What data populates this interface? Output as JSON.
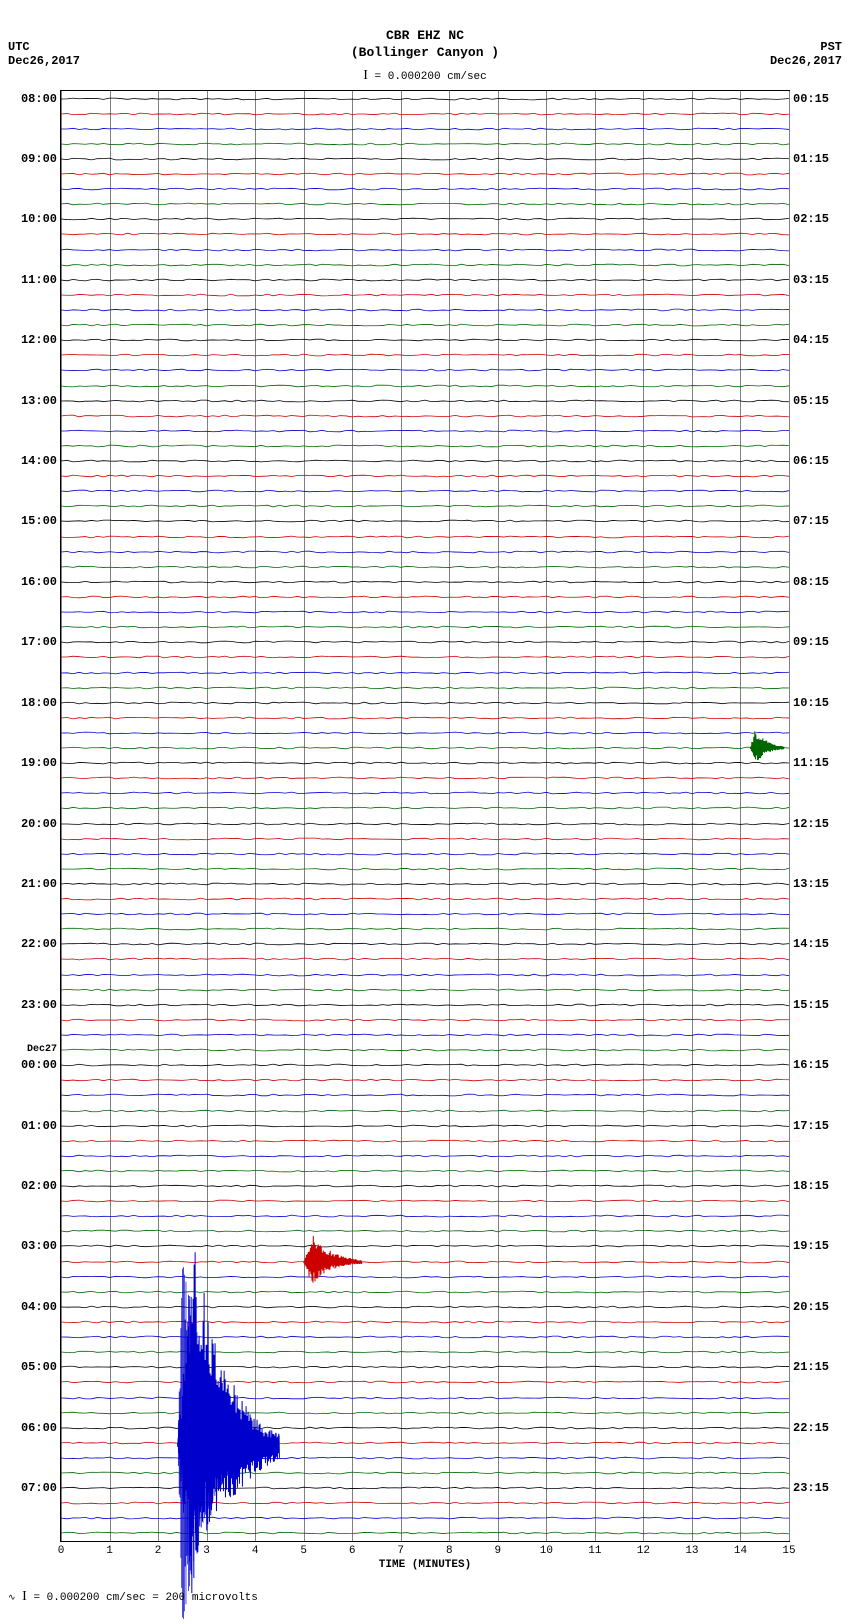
{
  "header": {
    "station": "CBR EHZ NC",
    "location": "(Bollinger Canyon )",
    "scale_text": "= 0.000200 cm/sec"
  },
  "timezone_left": {
    "label": "UTC",
    "date": "Dec26,2017"
  },
  "timezone_right": {
    "label": "PST",
    "date": "Dec26,2017"
  },
  "chart": {
    "type": "helicorder",
    "background_color": "#ffffff",
    "grid_color": "#808080",
    "border_color": "#000000",
    "xlim": [
      0,
      15
    ],
    "x_tick_step": 1,
    "x_axis_title": "TIME (MINUTES)",
    "trace_colors": [
      "#000000",
      "#cc0000",
      "#0000cc",
      "#006600"
    ],
    "num_hours": 24,
    "lines_per_hour": 4,
    "total_lines": 96,
    "left_hour_labels": [
      "08:00",
      "09:00",
      "10:00",
      "11:00",
      "12:00",
      "13:00",
      "14:00",
      "15:00",
      "16:00",
      "17:00",
      "18:00",
      "19:00",
      "20:00",
      "21:00",
      "22:00",
      "23:00",
      "00:00",
      "01:00",
      "02:00",
      "03:00",
      "04:00",
      "05:00",
      "06:00",
      "07:00"
    ],
    "right_hour_labels": [
      "00:15",
      "01:15",
      "02:15",
      "03:15",
      "04:15",
      "05:15",
      "06:15",
      "07:15",
      "08:15",
      "09:15",
      "10:15",
      "11:15",
      "12:15",
      "13:15",
      "14:15",
      "15:15",
      "16:15",
      "17:15",
      "18:15",
      "19:15",
      "20:15",
      "21:15",
      "22:15",
      "23:15"
    ],
    "date_change": {
      "line_index": 64,
      "label": "Dec27"
    },
    "events": [
      {
        "line_index": 89,
        "minute_start": 2.4,
        "minute_end": 4.5,
        "max_amplitude": 180,
        "color": "#0000cc",
        "type": "large"
      },
      {
        "line_index": 77,
        "minute_start": 5.0,
        "minute_end": 6.2,
        "max_amplitude": 25,
        "color": "#cc0000",
        "type": "small"
      },
      {
        "line_index": 43,
        "minute_start": 14.2,
        "minute_end": 14.9,
        "max_amplitude": 18,
        "color": "#006600",
        "type": "small"
      }
    ]
  },
  "footer": {
    "scale_text": "= 0.000200 cm/sec =    200 microvolts"
  }
}
